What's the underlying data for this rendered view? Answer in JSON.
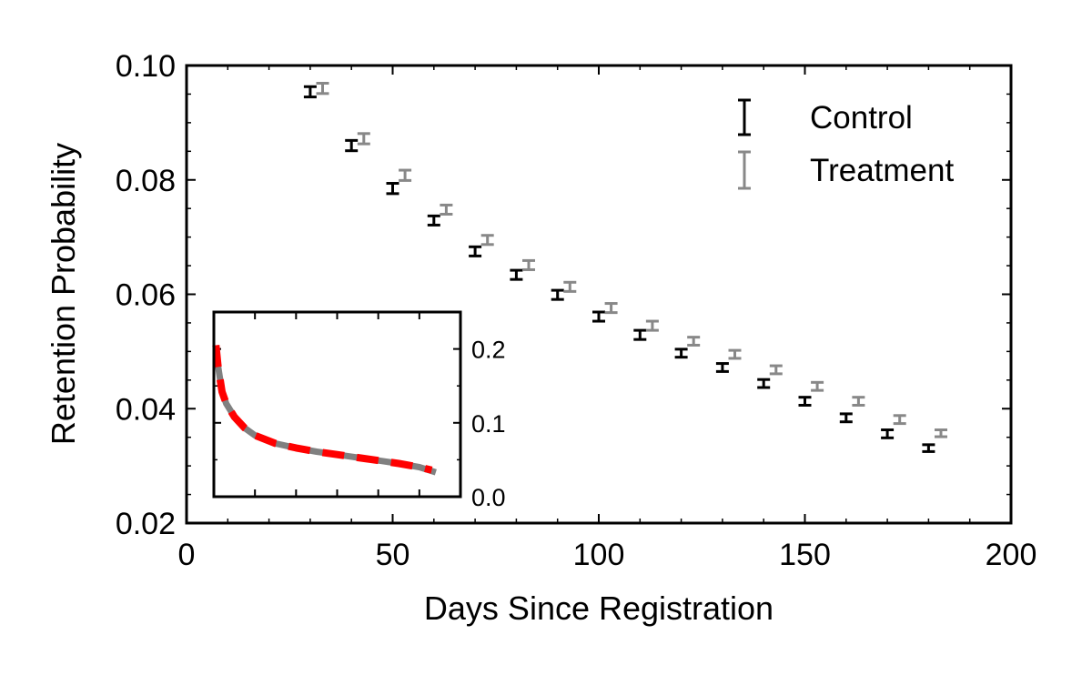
{
  "chart_data": [
    {
      "type": "scatter",
      "xlabel": "Days Since Registration",
      "ylabel": "Retention Probability",
      "xlim": [
        0,
        200
      ],
      "ylim": [
        0.02,
        0.1
      ],
      "xticks": [
        0,
        50,
        100,
        150,
        200
      ],
      "yticks": [
        0.02,
        0.04,
        0.06,
        0.08,
        0.1
      ],
      "x_tick_labels": [
        "0",
        "50",
        "100",
        "150",
        "200"
      ],
      "y_tick_labels": [
        "0.02",
        "0.04",
        "0.06",
        "0.08",
        "0.10"
      ],
      "grid": false,
      "legend_position": "top-right",
      "error_bars": true,
      "series": [
        {
          "name": "Control",
          "color": "#000000",
          "x": [
            30,
            40,
            50,
            60,
            70,
            80,
            90,
            100,
            110,
            120,
            130,
            140,
            150,
            160,
            170,
            180
          ],
          "y": [
            0.0954,
            0.086,
            0.0785,
            0.0729,
            0.0675,
            0.0634,
            0.0599,
            0.0561,
            0.0529,
            0.0497,
            0.0472,
            0.0444,
            0.0413,
            0.0384,
            0.0356,
            0.0331
          ],
          "err": [
            0.0009,
            0.0009,
            0.0009,
            0.0008,
            0.0008,
            0.0008,
            0.0008,
            0.0008,
            0.0008,
            0.0007,
            0.0007,
            0.0007,
            0.0007,
            0.0007,
            0.0007,
            0.0006
          ]
        },
        {
          "name": "Treatment",
          "color": "#888888",
          "x": [
            33,
            43,
            53,
            63,
            73,
            83,
            93,
            103,
            113,
            123,
            133,
            143,
            153,
            163,
            173,
            183
          ],
          "y": [
            0.096,
            0.0872,
            0.0808,
            0.0748,
            0.0695,
            0.0651,
            0.0613,
            0.0576,
            0.0545,
            0.0518,
            0.0495,
            0.0468,
            0.0439,
            0.0413,
            0.0381,
            0.0357
          ],
          "err": [
            0.0009,
            0.0009,
            0.0009,
            0.0008,
            0.0008,
            0.0008,
            0.0008,
            0.0008,
            0.0008,
            0.0007,
            0.0007,
            0.0007,
            0.0007,
            0.0007,
            0.0007,
            0.0006
          ]
        }
      ]
    },
    {
      "type": "line",
      "inset": true,
      "xlim": [
        0,
        6
      ],
      "ylim": [
        0.0,
        0.25
      ],
      "yticks": [
        0.0,
        0.1,
        0.2
      ],
      "y_tick_labels": [
        "0.0",
        "0.1",
        "0.2"
      ],
      "x_tick_labels": [],
      "y_axis_side": "right",
      "series": [
        {
          "style": "solid",
          "color": "#808080",
          "x": [
            0.05,
            0.1,
            0.2,
            0.3,
            0.5,
            0.75,
            1.0,
            1.5,
            2.0,
            2.5,
            3.0,
            3.5,
            4.0,
            4.5,
            5.0,
            5.4
          ],
          "y": [
            0.205,
            0.178,
            0.142,
            0.126,
            0.108,
            0.093,
            0.083,
            0.072,
            0.066,
            0.061,
            0.057,
            0.053,
            0.049,
            0.045,
            0.04,
            0.033
          ]
        },
        {
          "style": "dashed",
          "color": "#ff0000",
          "x": [
            0.05,
            0.1,
            0.2,
            0.3,
            0.5,
            0.75,
            1.0,
            1.5,
            2.0,
            2.5,
            3.0,
            3.5,
            4.0,
            4.5,
            5.0,
            5.3
          ],
          "y": [
            0.205,
            0.178,
            0.142,
            0.126,
            0.108,
            0.093,
            0.083,
            0.072,
            0.066,
            0.061,
            0.057,
            0.053,
            0.049,
            0.045,
            0.04,
            0.036
          ]
        }
      ]
    }
  ]
}
